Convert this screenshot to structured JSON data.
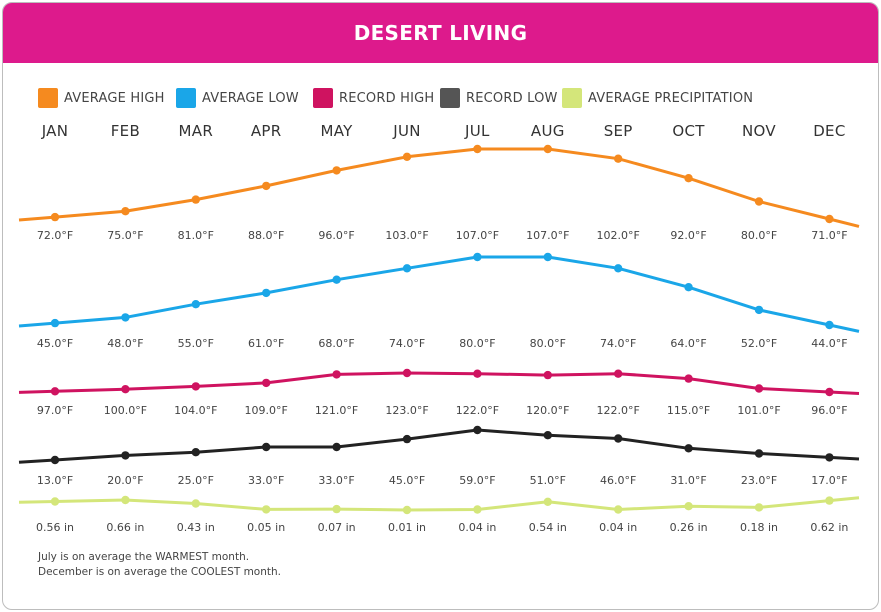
{
  "title": "DESERT LIVING",
  "colors": {
    "header": "#dd1a8c",
    "average_high": "#f58a1f",
    "average_low": "#1aa6e8",
    "record_high": "#cf1360",
    "record_low": "#333333",
    "average_precipitation": "#d4e67a"
  },
  "chart_data": {
    "type": "line",
    "title": "DESERT LIVING",
    "categories": [
      "JAN",
      "FEB",
      "MAR",
      "APR",
      "MAY",
      "JUN",
      "JUL",
      "AUG",
      "SEP",
      "OCT",
      "NOV",
      "DEC"
    ],
    "legend_position": "top",
    "grid": false,
    "series": [
      {
        "name": "AVERAGE HIGH",
        "color": "#f58a1f",
        "values": [
          72.0,
          75.0,
          81.0,
          88.0,
          96.0,
          103.0,
          107.0,
          107.0,
          102.0,
          92.0,
          80.0,
          71.0
        ],
        "labels": [
          "72.0°F",
          "75.0°F",
          "81.0°F",
          "88.0°F",
          "96.0°F",
          "103.0°F",
          "107.0°F",
          "107.0°F",
          "102.0°F",
          "92.0°F",
          "80.0°F",
          "71.0°F"
        ]
      },
      {
        "name": "AVERAGE LOW",
        "color": "#1aa6e8",
        "values": [
          45.0,
          48.0,
          55.0,
          61.0,
          68.0,
          74.0,
          80.0,
          80.0,
          74.0,
          64.0,
          52.0,
          44.0
        ],
        "labels": [
          "45.0°F",
          "48.0°F",
          "55.0°F",
          "61.0°F",
          "68.0°F",
          "74.0°F",
          "80.0°F",
          "80.0°F",
          "74.0°F",
          "64.0°F",
          "52.0°F",
          "44.0°F"
        ]
      },
      {
        "name": "RECORD HIGH",
        "color": "#cf1360",
        "values": [
          97.0,
          100.0,
          104.0,
          109.0,
          121.0,
          123.0,
          122.0,
          120.0,
          122.0,
          115.0,
          101.0,
          96.0
        ],
        "labels": [
          "97.0°F",
          "100.0°F",
          "104.0°F",
          "109.0°F",
          "121.0°F",
          "123.0°F",
          "122.0°F",
          "120.0°F",
          "122.0°F",
          "115.0°F",
          "101.0°F",
          "96.0°F"
        ]
      },
      {
        "name": "RECORD LOW",
        "color": "#333333",
        "values": [
          13.0,
          20.0,
          25.0,
          33.0,
          33.0,
          45.0,
          59.0,
          51.0,
          46.0,
          31.0,
          23.0,
          17.0
        ],
        "labels": [
          "13.0°F",
          "20.0°F",
          "25.0°F",
          "33.0°F",
          "33.0°F",
          "45.0°F",
          "59.0°F",
          "51.0°F",
          "46.0°F",
          "31.0°F",
          "23.0°F",
          "17.0°F"
        ]
      },
      {
        "name": "AVERAGE PRECIPITATION",
        "color": "#d4e67a",
        "values": [
          0.56,
          0.66,
          0.43,
          0.05,
          0.07,
          0.01,
          0.04,
          0.54,
          0.04,
          0.26,
          0.18,
          0.62
        ],
        "labels": [
          "0.56 in",
          "0.66 in",
          "0.43 in",
          "0.05 in",
          "0.07 in",
          "0.01 in",
          "0.04 in",
          "0.54 in",
          "0.04 in",
          "0.26 in",
          "0.18 in",
          "0.62 in"
        ]
      }
    ]
  },
  "notes": [
    "July is on average the WARMEST month.",
    "December is on average the COOLEST month."
  ]
}
